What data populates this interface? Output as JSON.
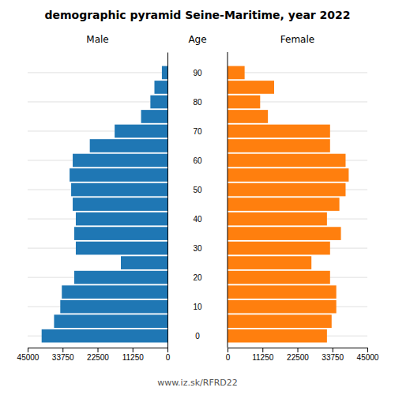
{
  "chart_data": {
    "type": "bar",
    "orientation": "horizontal",
    "title": "demographic pyramid Seine-Maritime, year 2022",
    "ylabel": "Age",
    "annotations": [
      "www.iz.sk/RFRD22"
    ],
    "y": [
      0,
      5,
      10,
      15,
      20,
      25,
      30,
      35,
      40,
      45,
      50,
      55,
      60,
      65,
      70,
      75,
      80,
      85,
      90
    ],
    "series": [
      {
        "name": "Male",
        "values": [
          40500,
          36500,
          34500,
          34000,
          30000,
          15000,
          29500,
          30000,
          29500,
          30500,
          31000,
          31500,
          30500,
          25000,
          17000,
          8500,
          5500,
          4200,
          1800
        ]
      },
      {
        "name": "Female",
        "values": [
          32000,
          33500,
          35000,
          35000,
          33000,
          27000,
          33000,
          36500,
          32000,
          36000,
          38000,
          39000,
          38000,
          33000,
          33000,
          13000,
          10500,
          15000,
          5500
        ]
      }
    ],
    "xlim": [
      0,
      45000
    ],
    "xticks": [
      0,
      11250,
      22500,
      33750,
      45000
    ],
    "ylim": [
      -4,
      97
    ],
    "yticks": [
      0,
      10,
      20,
      30,
      40,
      50,
      60,
      70,
      80,
      90
    ],
    "grid": true
  }
}
